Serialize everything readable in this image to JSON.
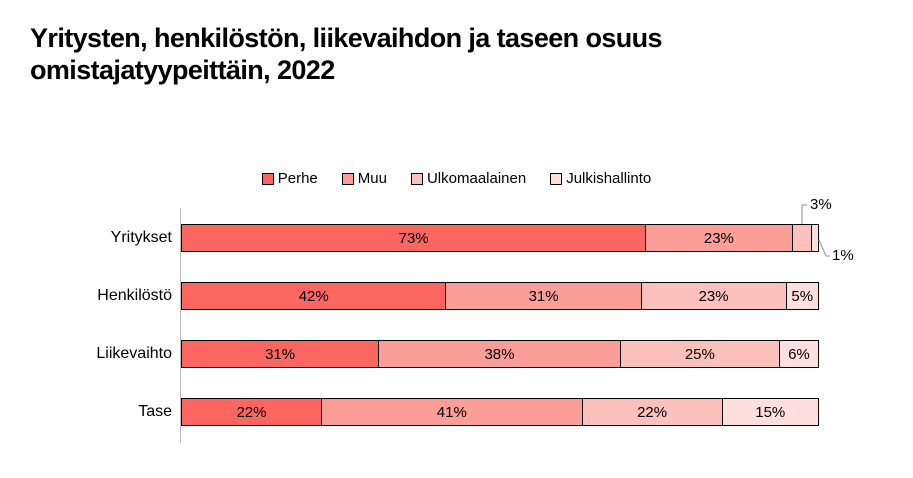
{
  "title": "Yritysten, henkilöstön, liikevaihdon ja taseen osuus omistajatyypeittäin, 2022",
  "chart_data": {
    "type": "bar",
    "orientation": "horizontal",
    "stacked": true,
    "value_unit": "%",
    "xlim": [
      0,
      100
    ],
    "grid": false,
    "legend_position": "top",
    "categories": [
      "Yritykset",
      "Henkilöstö",
      "Liikevaihto",
      "Tase"
    ],
    "series": [
      {
        "name": "Perhe",
        "color": "#FC6660",
        "values": [
          73,
          42,
          31,
          22
        ]
      },
      {
        "name": "Muu",
        "color": "#FC9E98",
        "values": [
          23,
          31,
          38,
          41
        ]
      },
      {
        "name": "Ulkomaalainen",
        "color": "#FDC1BD",
        "values": [
          3,
          23,
          25,
          22
        ]
      },
      {
        "name": "Julkishallinto",
        "color": "#FEDFDD",
        "values": [
          1,
          5,
          6,
          15
        ]
      }
    ],
    "data_label_format": "{value}%",
    "callout_labels": [
      {
        "category": "Yritykset",
        "series": "Ulkomaalainen",
        "text": "3%",
        "placement": "above"
      },
      {
        "category": "Yritykset",
        "series": "Julkishallinto",
        "text": "1%",
        "placement": "below"
      }
    ]
  },
  "style": {
    "segment_border_color": "#000000",
    "axis_line_color": "#BFBFBF",
    "callout_line_color": "#A6A6A6",
    "label_color": "#000000",
    "title_color": "#000000",
    "background_color": "#FFFFFF"
  }
}
